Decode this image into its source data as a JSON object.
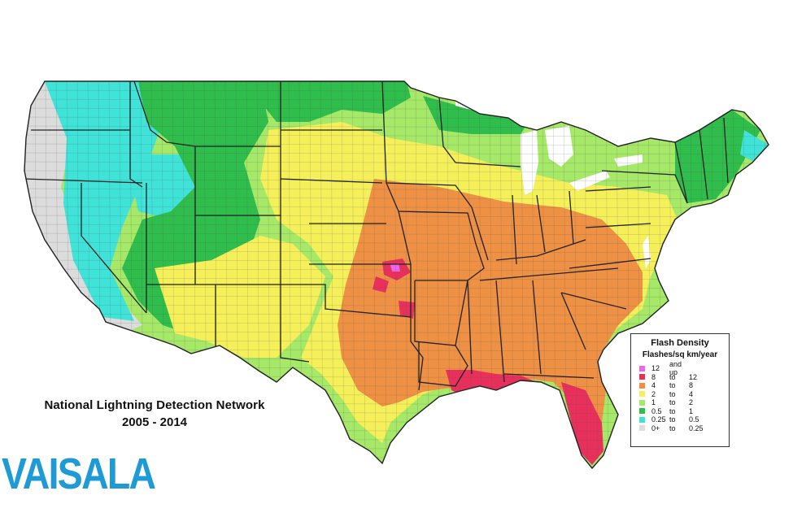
{
  "map": {
    "title_line1": "National Lightning Detection Network",
    "title_line2": "2005 - 2014",
    "logo_text": "VAISALA",
    "logo_color": "#1e9ad6",
    "legend": {
      "title": "Flash Density",
      "subtitle": "Flashes/sq km/year",
      "classes": [
        {
          "low": "12",
          "sep": "and up",
          "high": "",
          "color": "#ee66ee"
        },
        {
          "low": "8",
          "sep": "to",
          "high": "12",
          "color": "#e8305c"
        },
        {
          "low": "4",
          "sep": "to",
          "high": "8",
          "color": "#ee9144"
        },
        {
          "low": "2",
          "sep": "to",
          "high": "4",
          "color": "#f5f05a"
        },
        {
          "low": "1",
          "sep": "to",
          "high": "2",
          "color": "#a6e868"
        },
        {
          "low": "0.5",
          "sep": "to",
          "high": "1",
          "color": "#2fbd4c"
        },
        {
          "low": "0.25",
          "sep": "to",
          "high": "0.5",
          "color": "#3fe3d8"
        },
        {
          "low": "0+",
          "sep": "to",
          "high": "0.25",
          "color": "#dcdcdc"
        }
      ]
    },
    "region_colors": {
      "very_low": "#dcdcdc",
      "low": "#3fe3d8",
      "low_mid": "#2fbd4c",
      "mid": "#a6e868",
      "mid_high": "#f5f05a",
      "high": "#ee9144",
      "very_high": "#e8305c",
      "extreme": "#ee66ee",
      "water": "#ffffff",
      "boundary": "#222222"
    }
  }
}
